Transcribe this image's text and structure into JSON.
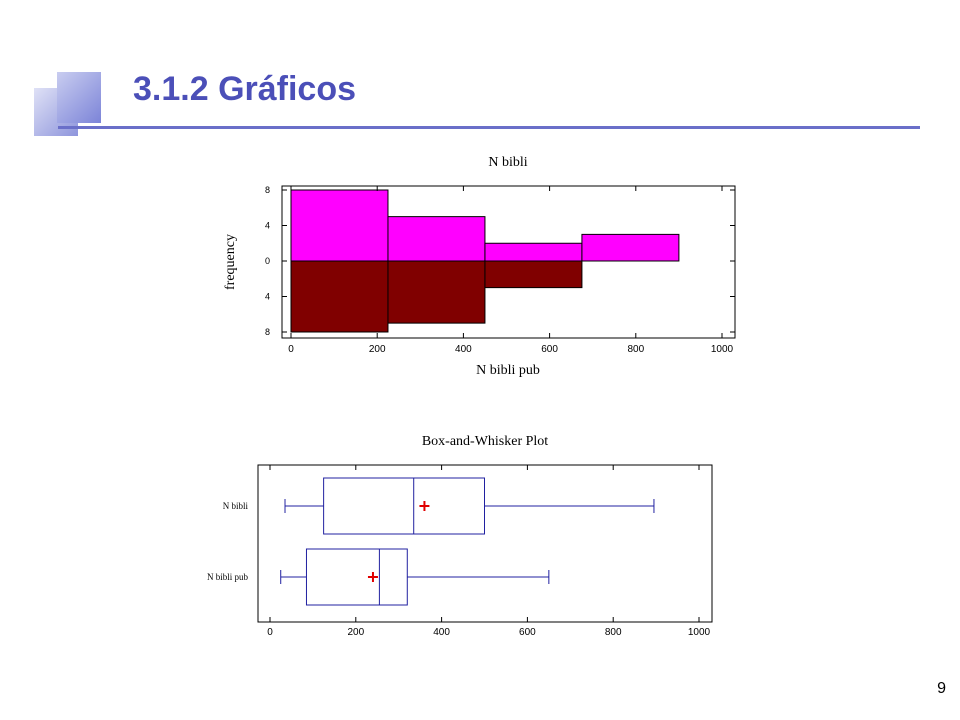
{
  "slide": {
    "title": "3.1.2 Gráficos",
    "page_number": "9",
    "accent_color": "#4b4fb8"
  },
  "chart_data": [
    {
      "type": "bar",
      "subtype": "back-to-back histogram",
      "title": "N bibli",
      "xlabel": "N bibli pub",
      "ylabel": "frequency",
      "xlim": [
        0,
        1000
      ],
      "ylim": [
        -8,
        8
      ],
      "x_ticks": [
        "0",
        "200",
        "400",
        "600",
        "800",
        "1000"
      ],
      "y_ticks": [
        "8",
        "4",
        "0",
        "4",
        "8"
      ],
      "series": [
        {
          "color": "#ff00ff",
          "direction": "up",
          "bins": [
            {
              "x0": 0,
              "x1": 225,
              "value": 8
            },
            {
              "x0": 225,
              "x1": 450,
              "value": 5
            },
            {
              "x0": 450,
              "x1": 675,
              "value": 2
            },
            {
              "x0": 675,
              "x1": 900,
              "value": 3
            }
          ]
        },
        {
          "color": "#800000",
          "direction": "down",
          "bins": [
            {
              "x0": 0,
              "x1": 225,
              "value": 8
            },
            {
              "x0": 225,
              "x1": 450,
              "value": 7
            },
            {
              "x0": 450,
              "x1": 675,
              "value": 3
            }
          ]
        }
      ]
    },
    {
      "type": "box",
      "title": "Box-and-Whisker Plot",
      "xlim": [
        0,
        1000
      ],
      "x_ticks": [
        "0",
        "200",
        "400",
        "600",
        "800",
        "1000"
      ],
      "box_color": "#2020a0",
      "mean_color": "#e00000",
      "series": [
        {
          "name": "N bibli",
          "min": 35,
          "q1": 125,
          "median": 335,
          "q3": 500,
          "max": 895,
          "mean": 360
        },
        {
          "name": "N bibli pub",
          "min": 25,
          "q1": 85,
          "median": 255,
          "q3": 320,
          "max": 650,
          "mean": 240
        }
      ]
    }
  ]
}
